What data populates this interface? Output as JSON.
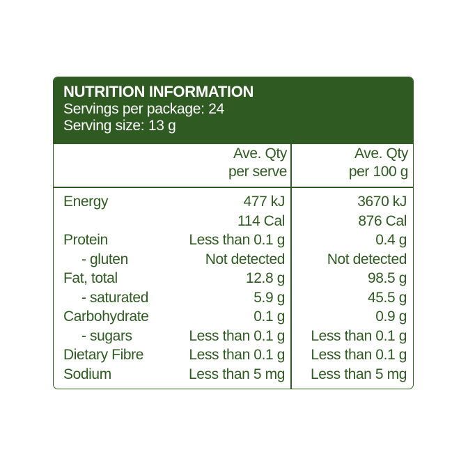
{
  "panel": {
    "title": "NUTRITION INFORMATION",
    "servings_per_package": "Servings per package: 24",
    "serving_size": "Serving size: 13 g",
    "colors": {
      "primary": "#2f5a22",
      "background": "#ffffff"
    }
  },
  "columns": {
    "per_serve": [
      "Ave. Qty",
      "per serve"
    ],
    "per_100g": [
      "Ave. Qty",
      "per 100 g"
    ]
  },
  "rows": [
    {
      "label": "Energy",
      "sub": false,
      "per_serve": "477 kJ",
      "per_100g": "3670 kJ"
    },
    {
      "label": "",
      "sub": false,
      "per_serve": "114 Cal",
      "per_100g": "876 Cal"
    },
    {
      "label": "Protein",
      "sub": false,
      "per_serve": "Less than 0.1 g",
      "per_100g": "0.4 g"
    },
    {
      "label": "- gluten",
      "sub": true,
      "per_serve": "Not detected",
      "per_100g": "Not detected"
    },
    {
      "label": "Fat, total",
      "sub": false,
      "per_serve": "12.8 g",
      "per_100g": "98.5 g"
    },
    {
      "label": "- saturated",
      "sub": true,
      "per_serve": "5.9 g",
      "per_100g": "45.5 g"
    },
    {
      "label": "Carbohydrate",
      "sub": false,
      "per_serve": "0.1 g",
      "per_100g": "0.9 g"
    },
    {
      "label": "- sugars",
      "sub": true,
      "per_serve": "Less than 0.1 g",
      "per_100g": "Less than 0.1 g"
    },
    {
      "label": "Dietary Fibre",
      "sub": false,
      "per_serve": "Less than 0.1 g",
      "per_100g": "Less than 0.1 g"
    },
    {
      "label": "Sodium",
      "sub": false,
      "per_serve": "Less than 5 mg",
      "per_100g": "Less than 5 mg"
    }
  ]
}
